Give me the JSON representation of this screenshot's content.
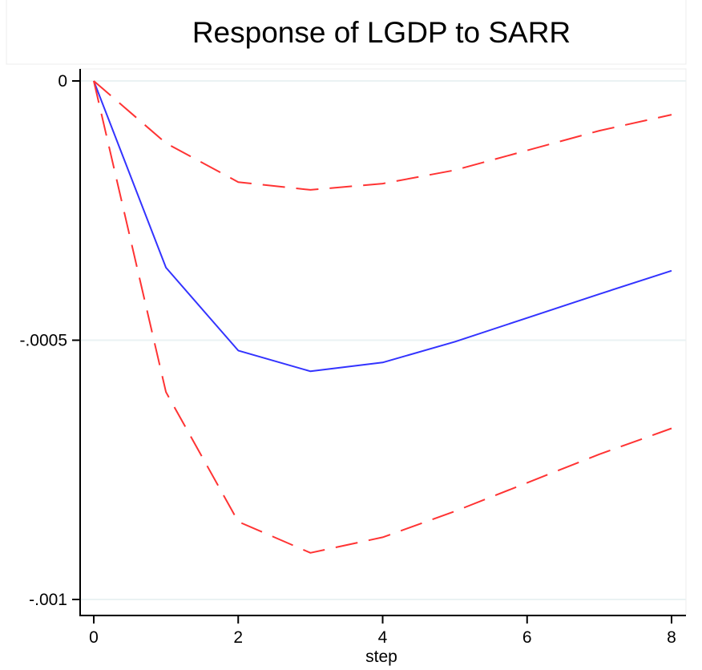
{
  "chart_data": {
    "type": "line",
    "title": "Response of LGDP to SARR",
    "xlabel": "step",
    "ylabel": "",
    "x": [
      0,
      1,
      2,
      3,
      4,
      5,
      6,
      7,
      8
    ],
    "xlim": [
      0,
      8
    ],
    "ylim": [
      -0.001,
      0
    ],
    "x_ticks": [
      0,
      2,
      4,
      6,
      8
    ],
    "x_tick_labels": [
      "0",
      "2",
      "4",
      "6",
      "8"
    ],
    "y_ticks": [
      0,
      -0.0005,
      -0.001
    ],
    "y_tick_labels": [
      "0",
      "-.0005",
      "-.001"
    ],
    "grid": true,
    "series": [
      {
        "role": "estimate",
        "color": "#3333ff",
        "style": "solid",
        "values": [
          0,
          -0.00036,
          -0.00052,
          -0.00056,
          -0.000543,
          -0.000503,
          -0.000457,
          -0.000411,
          -0.000366
        ]
      },
      {
        "role": "upper-band",
        "color": "#ff3333",
        "style": "dashed",
        "values": [
          0,
          -0.00012,
          -0.000195,
          -0.00021,
          -0.000198,
          -0.000172,
          -0.000134,
          -9.6e-05,
          -6.5e-05
        ]
      },
      {
        "role": "lower-band",
        "color": "#ff3333",
        "style": "dashed",
        "values": [
          0,
          -0.0006,
          -0.00085,
          -0.00091,
          -0.00088,
          -0.00083,
          -0.000775,
          -0.00072,
          -0.00067
        ]
      }
    ]
  }
}
